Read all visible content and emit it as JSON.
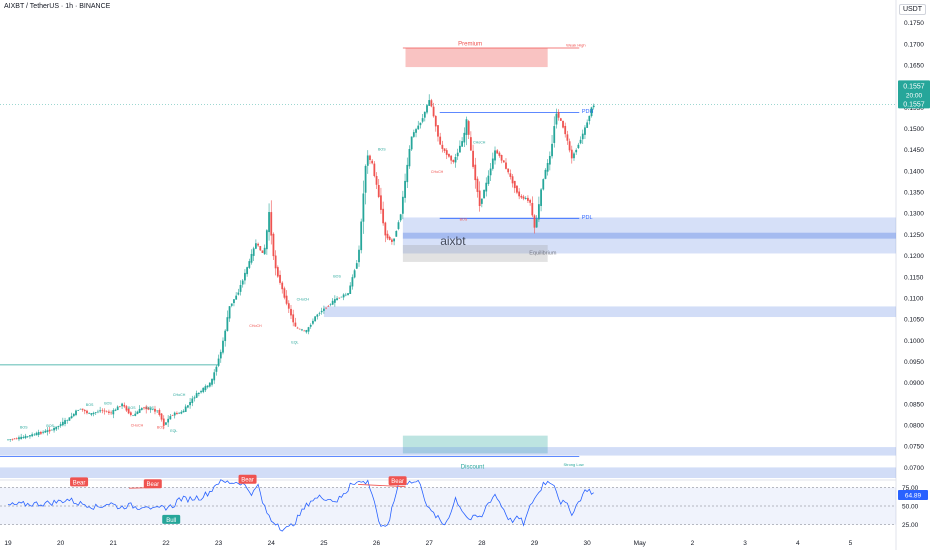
{
  "header": {
    "symbol": "AIXBT / TetherUS · 1h · BINANCE",
    "currency": "USDT"
  },
  "price_tags": {
    "top": "0.1557",
    "countdown": "20:00",
    "bottom": "0.1557"
  },
  "watermark": "aixbt",
  "zone_labels": {
    "premium": "Premium",
    "weak_high": "Weak High",
    "pdh": "PDH",
    "pdl": "PDL",
    "equilibrium": "Equilibrium",
    "discount": "Discount",
    "strong_low": "Strong Low"
  },
  "structure_labels": [
    {
      "text": "BOS",
      "t": 0.3,
      "p": 0.0792,
      "color": "#26a69a"
    },
    {
      "text": "BOS",
      "t": 0.8,
      "p": 0.0795,
      "color": "#26a69a"
    },
    {
      "text": "BOS",
      "t": 1.55,
      "p": 0.0845,
      "color": "#26a69a"
    },
    {
      "text": "BOS",
      "t": 1.9,
      "p": 0.0848,
      "color": "#26a69a"
    },
    {
      "text": "BOS",
      "t": 2.35,
      "p": 0.0838,
      "color": "#26a69a"
    },
    {
      "text": "CHoCH",
      "t": 2.45,
      "p": 0.0796,
      "color": "#ef5350"
    },
    {
      "text": "BOS",
      "t": 2.7,
      "p": 0.0838,
      "color": "#26a69a"
    },
    {
      "text": "BOS",
      "t": 2.9,
      "p": 0.0792,
      "color": "#ef5350"
    },
    {
      "text": "CHoCH",
      "t": 3.25,
      "p": 0.0868,
      "color": "#26a69a"
    },
    {
      "text": "EQL",
      "t": 3.15,
      "p": 0.0783,
      "color": "#26a69a"
    },
    {
      "text": "CHoCH",
      "t": 4.7,
      "p": 0.1032,
      "color": "#ef5350"
    },
    {
      "text": "CHoCH",
      "t": 5.6,
      "p": 0.1094,
      "color": "#26a69a"
    },
    {
      "text": "EQL",
      "t": 5.45,
      "p": 0.0993,
      "color": "#26a69a"
    },
    {
      "text": "BOS",
      "t": 6.25,
      "p": 0.1148,
      "color": "#26a69a"
    },
    {
      "text": "BOS",
      "t": 7.1,
      "p": 0.1448,
      "color": "#26a69a"
    },
    {
      "text": "CHoCH",
      "t": 8.15,
      "p": 0.1395,
      "color": "#ef5350"
    },
    {
      "text": "BOS",
      "t": 8.65,
      "p": 0.1283,
      "color": "#ef5350"
    },
    {
      "text": "CHoCH",
      "t": 8.95,
      "p": 0.1465,
      "color": "#26a69a"
    }
  ],
  "rsi": {
    "value": "64.89",
    "levels": [
      "75.00",
      "50.00",
      "25.00"
    ],
    "signals": [
      "Bear",
      "Bear",
      "Bull",
      "Bear",
      "Bear"
    ]
  },
  "chart_data": {
    "type": "candlestick",
    "title": "AIXBT / TetherUS · 1h · BINANCE",
    "x_ticks": [
      "19",
      "20",
      "21",
      "22",
      "23",
      "24",
      "25",
      "26",
      "27",
      "28",
      "29",
      "30",
      "May",
      "2",
      "3",
      "4",
      "5"
    ],
    "y_ticks": [
      "0.1750",
      "0.1700",
      "0.1650",
      "0.1600",
      "0.1550",
      "0.1500",
      "0.1450",
      "0.1400",
      "0.1350",
      "0.1300",
      "0.1250",
      "0.1200",
      "0.1150",
      "0.1100",
      "0.1050",
      "0.1000",
      "0.0950",
      "0.0900",
      "0.0850",
      "0.0800",
      "0.0750",
      "0.0700"
    ],
    "ylim": [
      0.0675,
      0.1775
    ],
    "last_price": 0.1557,
    "price_path": [
      [
        0.0,
        0.0765
      ],
      [
        0.3,
        0.077
      ],
      [
        0.6,
        0.078
      ],
      [
        0.9,
        0.079
      ],
      [
        1.2,
        0.0815
      ],
      [
        1.4,
        0.084
      ],
      [
        1.6,
        0.0825
      ],
      [
        1.8,
        0.0835
      ],
      [
        2.0,
        0.0828
      ],
      [
        2.2,
        0.085
      ],
      [
        2.4,
        0.082
      ],
      [
        2.6,
        0.0842
      ],
      [
        2.9,
        0.0832
      ],
      [
        3.0,
        0.08
      ],
      [
        3.15,
        0.0825
      ],
      [
        3.35,
        0.083
      ],
      [
        3.6,
        0.087
      ],
      [
        3.9,
        0.09
      ],
      [
        4.1,
        0.098
      ],
      [
        4.25,
        0.108
      ],
      [
        4.4,
        0.111
      ],
      [
        4.55,
        0.116
      ],
      [
        4.75,
        0.123
      ],
      [
        4.9,
        0.12
      ],
      [
        5.0,
        0.13
      ],
      [
        5.1,
        0.118
      ],
      [
        5.3,
        0.11
      ],
      [
        5.5,
        0.103
      ],
      [
        5.7,
        0.102
      ],
      [
        5.9,
        0.106
      ],
      [
        6.1,
        0.108
      ],
      [
        6.3,
        0.11
      ],
      [
        6.5,
        0.111
      ],
      [
        6.7,
        0.12
      ],
      [
        6.85,
        0.144
      ],
      [
        6.95,
        0.142
      ],
      [
        7.1,
        0.133
      ],
      [
        7.2,
        0.125
      ],
      [
        7.35,
        0.123
      ],
      [
        7.5,
        0.13
      ],
      [
        7.7,
        0.148
      ],
      [
        7.9,
        0.152
      ],
      [
        8.05,
        0.157
      ],
      [
        8.25,
        0.146
      ],
      [
        8.5,
        0.142
      ],
      [
        8.7,
        0.148
      ],
      [
        8.75,
        0.152
      ],
      [
        8.85,
        0.143
      ],
      [
        9.0,
        0.132
      ],
      [
        9.15,
        0.138
      ],
      [
        9.3,
        0.145
      ],
      [
        9.45,
        0.142
      ],
      [
        9.6,
        0.138
      ],
      [
        9.75,
        0.134
      ],
      [
        9.95,
        0.133
      ],
      [
        10.05,
        0.126
      ],
      [
        10.2,
        0.138
      ],
      [
        10.35,
        0.144
      ],
      [
        10.45,
        0.154
      ],
      [
        10.6,
        0.15
      ],
      [
        10.75,
        0.143
      ],
      [
        10.9,
        0.147
      ],
      [
        11.0,
        0.15
      ],
      [
        11.15,
        0.1557
      ]
    ]
  }
}
